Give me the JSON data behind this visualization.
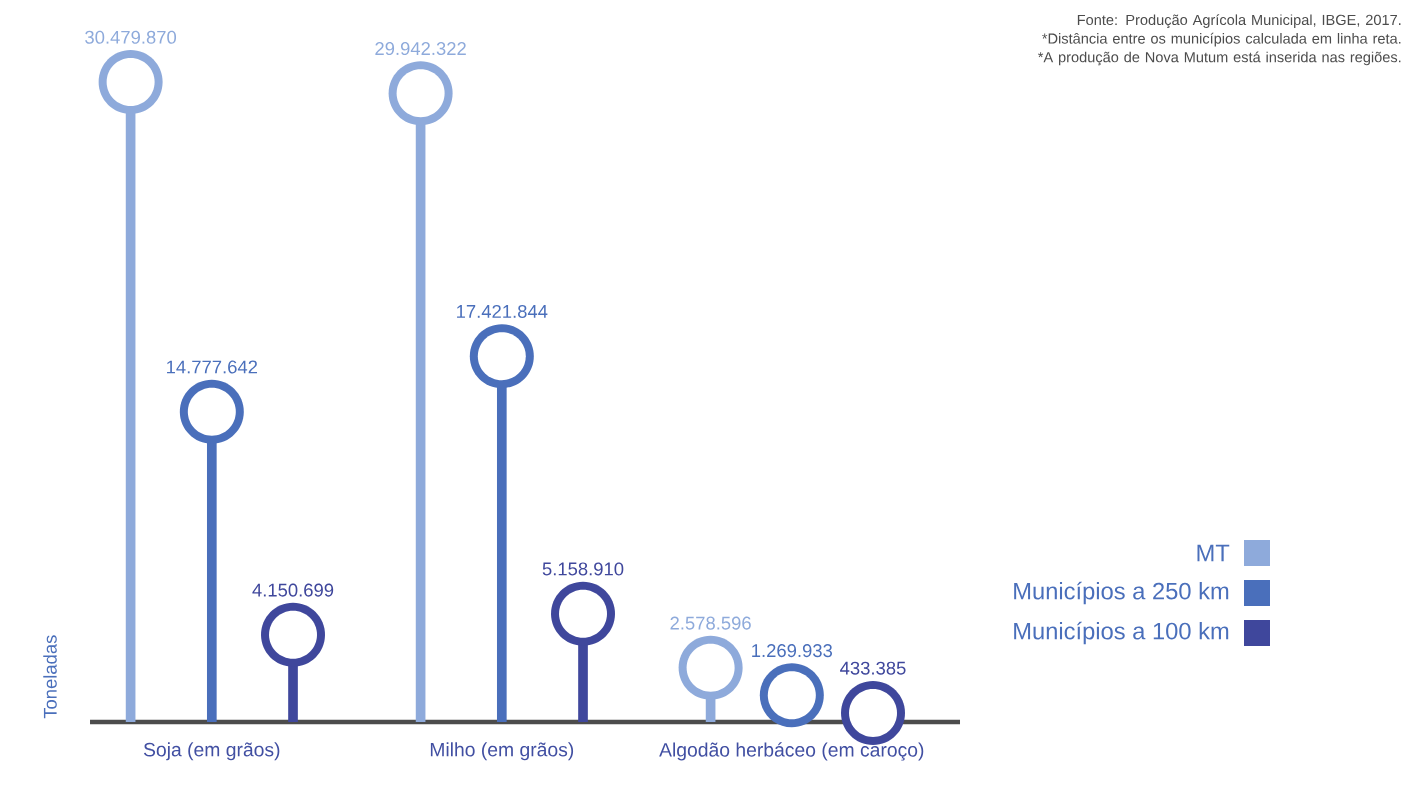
{
  "chart_data": {
    "type": "lollipop",
    "ylabel": "Toneladas",
    "categories": [
      "Soja (em grãos)",
      "Milho (em grãos)",
      "Algodão herbáceo (em caroço)"
    ],
    "series": [
      {
        "name": "MT",
        "color": "#8eaadb",
        "values": [
          30479870,
          29942322,
          2578596
        ],
        "value_labels": [
          "30.479.870",
          "29.942.322",
          "2.578.596"
        ]
      },
      {
        "name": "Municípios a 250 km",
        "color": "#4a6fbb",
        "values": [
          14777642,
          17421844,
          1269933
        ],
        "value_labels": [
          "14.777.642",
          "17.421.844",
          "1.269.933"
        ]
      },
      {
        "name": "Municípios a 100 km",
        "color": "#3f479c",
        "values": [
          4150699,
          5158910,
          433385
        ],
        "value_labels": [
          "4.150.699",
          "5.158.910",
          "433.385"
        ]
      }
    ],
    "marker": "circle",
    "legend": "right",
    "tick_labels": "x",
    "annotations": [
      "Fonte: Produção Agrícola Municipal, IBGE, 2017.",
      "*Distância entre os municípios calculada em linha reta.",
      "*A produção de Nova Mutum está inserida nas regiões."
    ]
  }
}
